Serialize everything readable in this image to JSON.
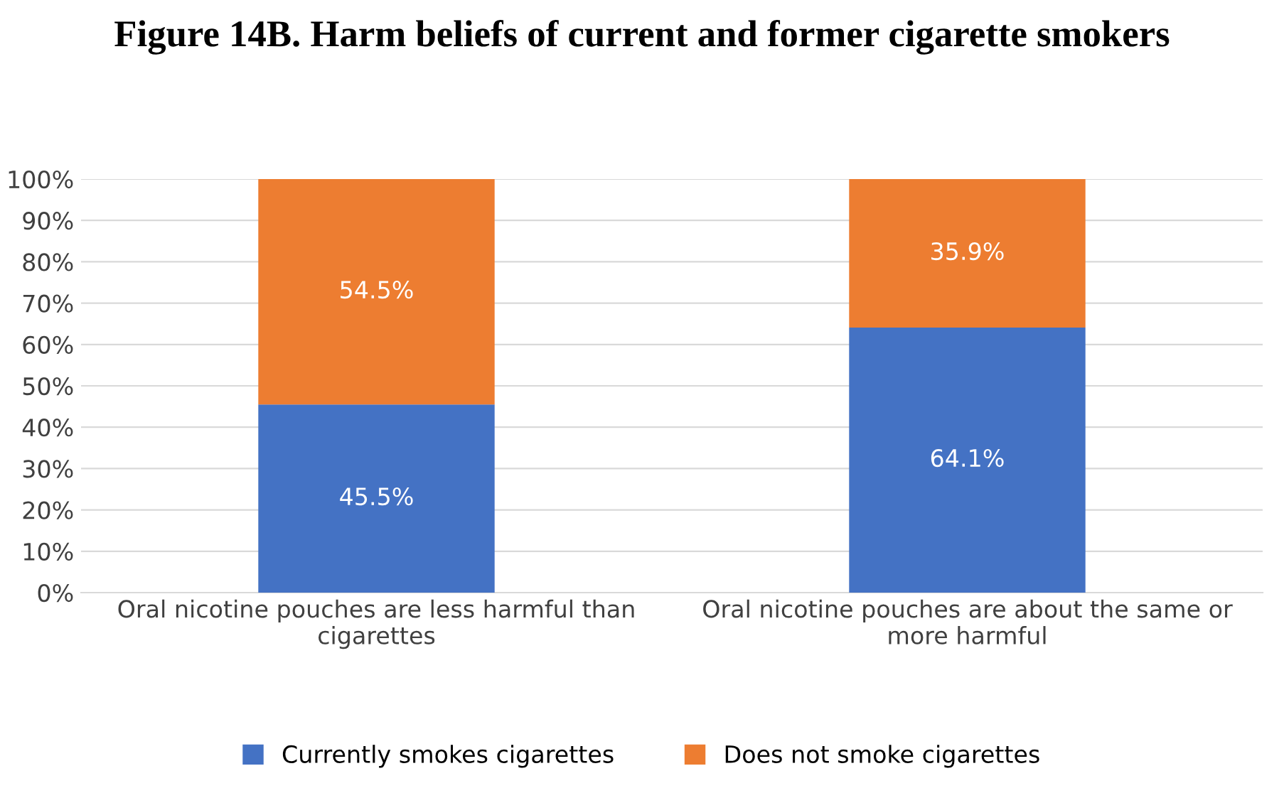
{
  "chart_data": {
    "type": "bar",
    "title": "Figure 14B.  Harm beliefs of current and former cigarette smokers",
    "categories": [
      "Oral nicotine pouches are less harmful than cigarettes",
      "Oral nicotine pouches are about the same or more harmful"
    ],
    "stacked": true,
    "series": [
      {
        "name": "Currently smokes cigarettes",
        "color": "#4472c4",
        "values": [
          45.5,
          64.1
        ],
        "value_labels": [
          "45.5%",
          "64.1%"
        ]
      },
      {
        "name": "Does not smoke cigarettes",
        "color": "#ed7d31",
        "values": [
          54.5,
          35.9
        ],
        "value_labels": [
          "54.5%",
          "35.9%"
        ]
      }
    ],
    "ylim": [
      0,
      100
    ],
    "yticks": [
      {
        "value": 0,
        "label": "0%"
      },
      {
        "value": 10,
        "label": "10%"
      },
      {
        "value": 20,
        "label": "20%"
      },
      {
        "value": 30,
        "label": "30%"
      },
      {
        "value": 40,
        "label": "40%"
      },
      {
        "value": 50,
        "label": "50%"
      },
      {
        "value": 60,
        "label": "60%"
      },
      {
        "value": 70,
        "label": "70%"
      },
      {
        "value": 80,
        "label": "80%"
      },
      {
        "value": 90,
        "label": "90%"
      },
      {
        "value": 100,
        "label": "100%"
      }
    ],
    "grid": "y",
    "legend": "bottom"
  }
}
